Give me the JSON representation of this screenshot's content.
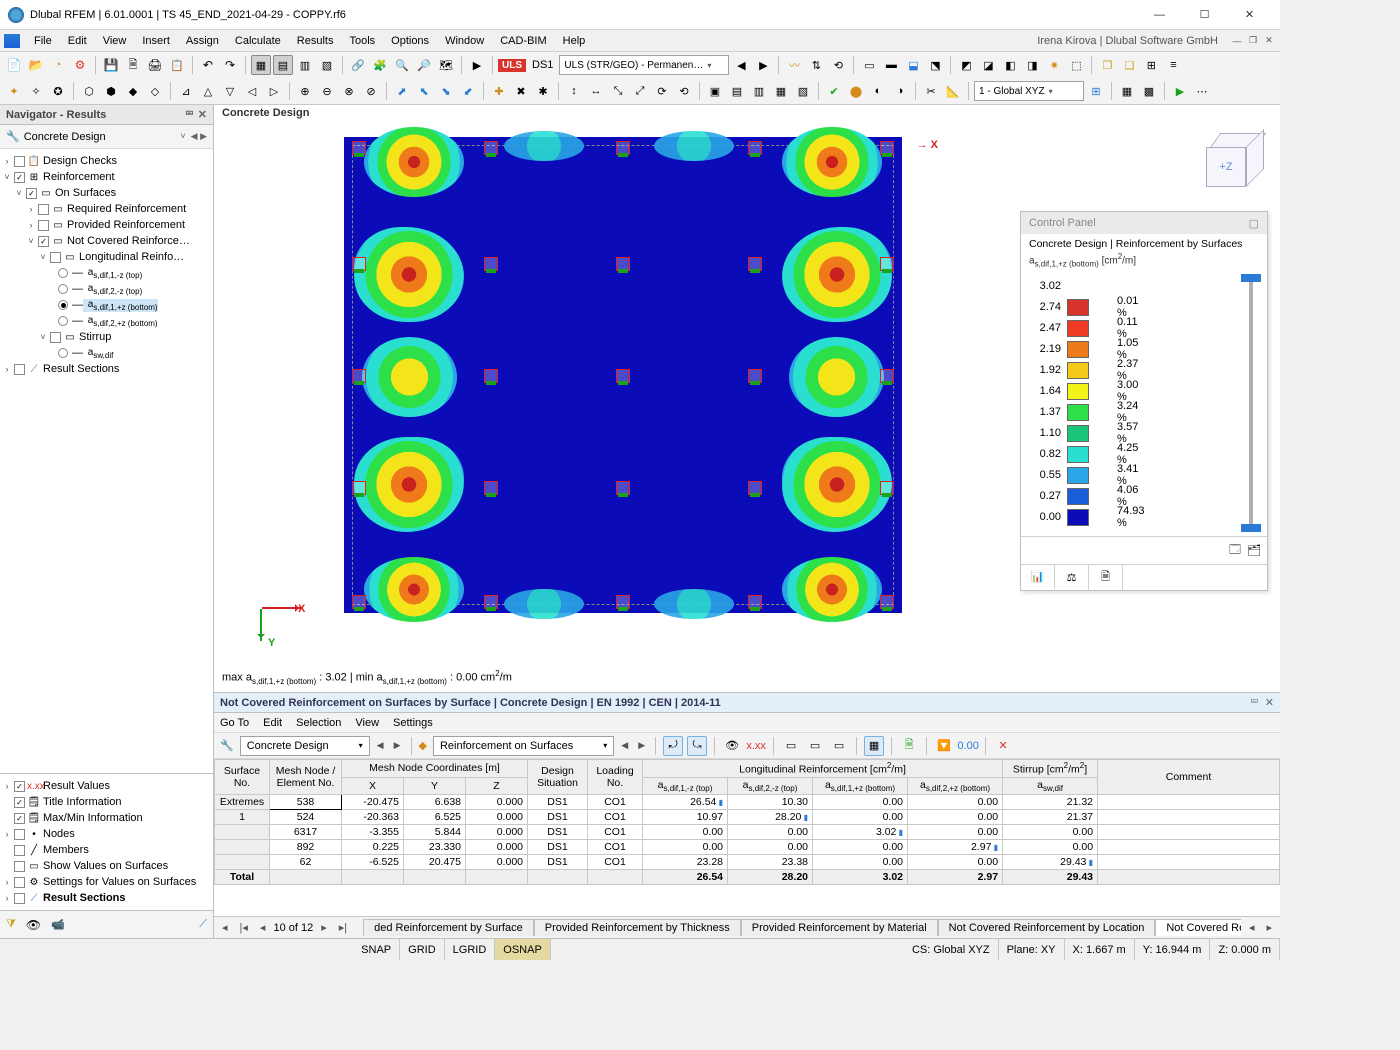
{
  "window": {
    "title": "Dlubal RFEM | 6.01.0001 | TS 45_END_2021-04-29 - COPPY.rf6",
    "user": "Irena Kirova | Dlubal Software GmbH"
  },
  "menus": [
    "File",
    "Edit",
    "View",
    "Insert",
    "Assign",
    "Calculate",
    "Results",
    "Tools",
    "Options",
    "Window",
    "CAD-BIM",
    "Help"
  ],
  "toolbar": {
    "uls_badge": "ULS",
    "ds_label": "DS1",
    "combo": "ULS (STR/GEO) - Permanen…",
    "cs_combo": "1 - Global XYZ"
  },
  "navigator": {
    "panel_title": "Navigator - Results",
    "section_title": "Concrete Design",
    "tree": {
      "design_checks": "Design Checks",
      "reinforcement": "Reinforcement",
      "on_surfaces": "On Surfaces",
      "required": "Required Reinforcement",
      "provided": "Provided Reinforcement",
      "not_covered": "Not Covered Reinforce…",
      "longitudinal": "Longitudinal Reinfo…",
      "r1": "a_s,dif,1,-z (top)",
      "r2": "a_s,dif,2,-z (top)",
      "r3": "a_s,dif,1,+z (bottom)",
      "r4": "a_s,dif,2,+z (bottom)",
      "stirrup": "Stirrup",
      "r5": "a_sw,dif",
      "result_sections": "Result Sections"
    },
    "lower": [
      "Result Values",
      "Title Information",
      "Max/Min Information",
      "Nodes",
      "Members",
      "Show Values on Surfaces",
      "Settings for Values on Surfaces",
      "Result Sections"
    ]
  },
  "viewport": {
    "header": "Concrete Design",
    "mesh_bg": "#0b0bb8",
    "axis_x": "X",
    "axis_y": "Y",
    "navcube_label": "+Z",
    "footer": "max a_s,dif,1,+z (bottom) : 3.02 | min a_s,dif,1,+z (bottom) : 0.00 cm²/m"
  },
  "control_panel": {
    "title": "Control Panel",
    "subtitle": "Concrete Design | Reinforcement by Surfaces",
    "unit_line": "a_s,dif,1,+z (bottom) [cm²/m]",
    "legend": [
      {
        "v": "3.02",
        "c": "#8b1a1a",
        "p": ""
      },
      {
        "v": "2.74",
        "c": "#d9342b",
        "p": "0.01 %"
      },
      {
        "v": "2.47",
        "c": "#ef3a24",
        "p": "0.11 %"
      },
      {
        "v": "2.19",
        "c": "#ef7a1a",
        "p": "1.05 %"
      },
      {
        "v": "1.92",
        "c": "#f3c91a",
        "p": "2.37 %"
      },
      {
        "v": "1.64",
        "c": "#f3f31a",
        "p": "3.00 %"
      },
      {
        "v": "1.37",
        "c": "#2de04a",
        "p": "3.24 %"
      },
      {
        "v": "1.10",
        "c": "#1ac47a",
        "p": "3.57 %"
      },
      {
        "v": "0.82",
        "c": "#2bdfd0",
        "p": "4.25 %"
      },
      {
        "v": "0.55",
        "c": "#2aa6e6",
        "p": "3.41 %"
      },
      {
        "v": "0.27",
        "c": "#1a5ed9",
        "p": "4.06 %"
      },
      {
        "v": "0.00",
        "c": "#0b0bb8",
        "p": "74.93 %"
      }
    ]
  },
  "results_panel": {
    "title": "Not Covered Reinforcement on Surfaces by Surface | Concrete Design | EN 1992 | CEN | 2014-11",
    "menus": [
      "Go To",
      "Edit",
      "Selection",
      "View",
      "Settings"
    ],
    "combo1": "Concrete Design",
    "combo2": "Reinforcement on Surfaces",
    "headers": {
      "surface_no": "Surface\nNo.",
      "mesh_node": "Mesh Node /\nElement No.",
      "coords": "Mesh Node Coordinates [m]",
      "x": "X",
      "y": "Y",
      "z": "Z",
      "design_sit": "Design\nSituation",
      "loading": "Loading\nNo.",
      "long": "Longitudinal Reinforcement [cm²/m]",
      "c1": "a_s,dif,1,-z (top)",
      "c2": "a_s,dif,2,-z (top)",
      "c3": "a_s,dif,1,+z (bottom)",
      "c4": "a_s,dif,2,+z (bottom)",
      "stirrup": "Stirrup [cm²/m²]",
      "csw": "a_sw,dif",
      "comment": "Comment"
    },
    "rows": [
      {
        "sh": "Extremes",
        "n": "538",
        "x": "-20.475",
        "y": "6.638",
        "z": "0.000",
        "ds": "DS1",
        "lo": "CO1",
        "v1": "26.54",
        "f1": true,
        "v2": "10.30",
        "v3": "0.00",
        "v4": "0.00",
        "sw": "21.32"
      },
      {
        "sh": "1",
        "n": "524",
        "x": "-20.363",
        "y": "6.525",
        "z": "0.000",
        "ds": "DS1",
        "lo": "CO1",
        "v1": "10.97",
        "v2": "28.20",
        "f2": true,
        "v3": "0.00",
        "v4": "0.00",
        "sw": "21.37"
      },
      {
        "sh": "",
        "n": "6317",
        "x": "-3.355",
        "y": "5.844",
        "z": "0.000",
        "ds": "DS1",
        "lo": "CO1",
        "v1": "0.00",
        "v2": "0.00",
        "v3": "3.02",
        "f3": true,
        "v4": "0.00",
        "sw": "0.00"
      },
      {
        "sh": "",
        "n": "892",
        "x": "0.225",
        "y": "23.330",
        "z": "0.000",
        "ds": "DS1",
        "lo": "CO1",
        "v1": "0.00",
        "v2": "0.00",
        "v3": "0.00",
        "v4": "2.97",
        "f4": true,
        "sw": "0.00"
      },
      {
        "sh": "",
        "n": "62",
        "x": "-6.525",
        "y": "20.475",
        "z": "0.000",
        "ds": "DS1",
        "lo": "CO1",
        "v1": "23.28",
        "v2": "23.38",
        "v3": "0.00",
        "v4": "0.00",
        "sw": "29.43",
        "fsw": true
      }
    ],
    "total": {
      "sh": "Total",
      "v1": "26.54",
      "v2": "28.20",
      "v3": "3.02",
      "v4": "2.97",
      "sw": "29.43"
    },
    "pager": {
      "pos": "10 of 12",
      "tabs": [
        "ded Reinforcement by Surface",
        "Provided Reinforcement by Thickness",
        "Provided Reinforcement by Material",
        "Not Covered Reinforcement by Location",
        "Not Covered Reinforcement by Surface"
      ],
      "active": 4
    }
  },
  "statusbar": {
    "snap": "SNAP",
    "grid": "GRID",
    "lgrid": "LGRID",
    "osnap": "OSNAP",
    "cs": "CS: Global XYZ",
    "plane": "Plane: XY",
    "x": "X: 1.667 m",
    "y": "Y: 16.944 m",
    "z": "Z: 0.000 m"
  }
}
